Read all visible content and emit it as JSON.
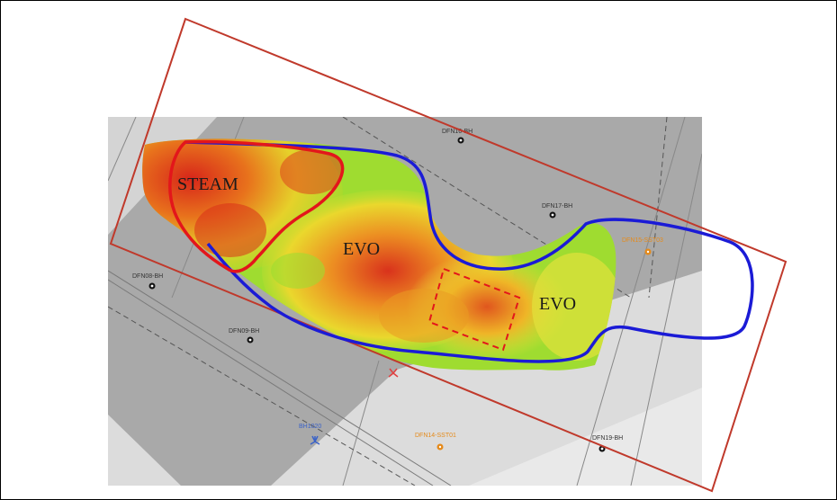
{
  "zones": {
    "steam": "STEAM",
    "evo_center": "EVO",
    "evo_right": "EVO"
  },
  "boreholes": [
    {
      "id": "dfn16",
      "label": "DFN16-BH",
      "kind": "borehole"
    },
    {
      "id": "dfn17",
      "label": "DFN17-BH",
      "kind": "borehole"
    },
    {
      "id": "dfn08",
      "label": "DFN08-BH",
      "kind": "borehole"
    },
    {
      "id": "dfn09",
      "label": "DFN09-BH",
      "kind": "borehole"
    },
    {
      "id": "dfn19",
      "label": "DFN19-BH",
      "kind": "borehole"
    },
    {
      "id": "dfn15",
      "label": "DFN15-SST03",
      "kind": "orange-probe"
    },
    {
      "id": "dfn14",
      "label": "DFN14-SST01",
      "kind": "orange-probe"
    },
    {
      "id": "bh1020",
      "label": "BH1020",
      "kind": "blue-marker"
    }
  ],
  "colors": {
    "steam_outline": "#e3161b",
    "evo_outline": "#1b1bd6",
    "frame_outline": "#c0392b",
    "dashed_box": "#e3161b",
    "map_dark": "#a9a9a9",
    "map_light": "#d9d9d9"
  }
}
